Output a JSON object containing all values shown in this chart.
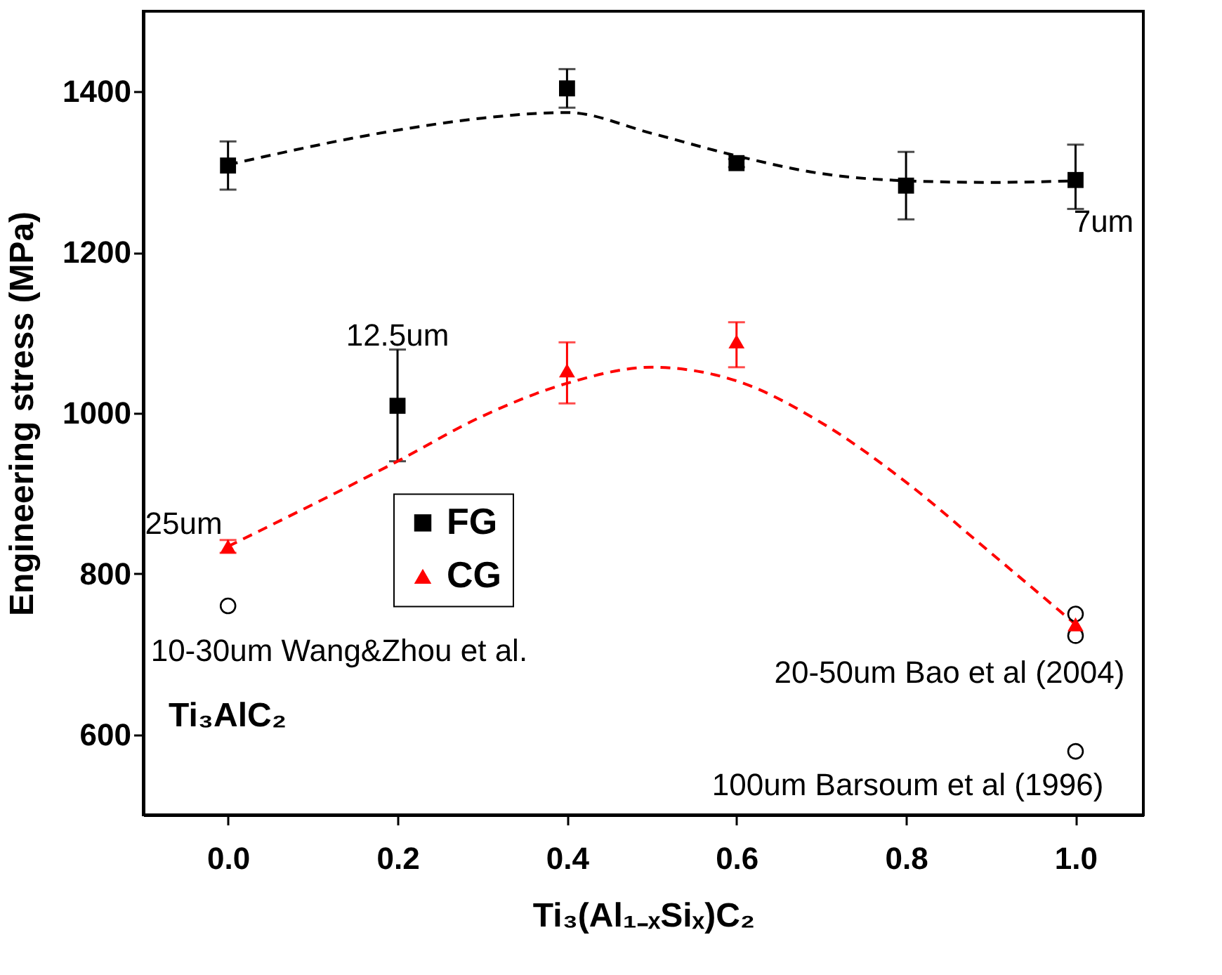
{
  "chart_data": {
    "type": "scatter",
    "xlabel": "Ti₃(Al₁₋ₓSiₓ)C₂",
    "ylabel": "Engineering stress (MPa)",
    "xlim": [
      -0.1,
      1.08
    ],
    "ylim": [
      500,
      1500
    ],
    "xticks": [
      {
        "value": 0,
        "label": "0.0"
      },
      {
        "value": 0.2,
        "label": "0.2"
      },
      {
        "value": 0.4,
        "label": "0.4"
      },
      {
        "value": 0.6,
        "label": "0.6"
      },
      {
        "value": 0.8,
        "label": "0.8"
      },
      {
        "value": 1,
        "label": "1.0"
      }
    ],
    "yticks": [
      600,
      800,
      1000,
      1200,
      1400
    ],
    "grid": false,
    "legend": "center",
    "series": [
      {
        "name": "FG",
        "marker": "square",
        "color": "#000000",
        "x": [
          0,
          0.2,
          0.4,
          0.6,
          0.8,
          1.0
        ],
        "values": [
          1308,
          1009,
          1404,
          1311,
          1283,
          1290
        ],
        "errors": [
          [
            1278,
            1338
          ],
          [
            940,
            1079
          ],
          [
            1380,
            1428
          ],
          [
            1306,
            1316
          ],
          [
            1241,
            1325
          ],
          [
            1254,
            1334
          ]
        ]
      },
      {
        "type": "line",
        "line_style": "dashed",
        "color": "#000000",
        "x": [
          0,
          0.2,
          0.3,
          0.4,
          0.5,
          0.6,
          0.7,
          0.8,
          0.9,
          1.0
        ],
        "values": [
          1309,
          1352,
          1367,
          1374,
          1348,
          1320,
          1298,
          1289,
          1287,
          1289
        ]
      },
      {
        "name": "CG",
        "marker": "triangle",
        "color": "#ff0000",
        "x": [
          0,
          0.4,
          0.6,
          1.0
        ],
        "values": [
          834,
          1053,
          1089,
          737
        ],
        "errors": [
          [
            826,
            842
          ],
          [
            1012,
            1088
          ],
          [
            1057,
            1113
          ],
          null
        ]
      },
      {
        "type": "line",
        "line_style": "dashed",
        "color": "#ff0000",
        "x": [
          0,
          0.2,
          0.3,
          0.4,
          0.5,
          0.6,
          0.7,
          0.8,
          0.9,
          1.0
        ],
        "values": [
          834,
          940,
          996,
          1037,
          1057,
          1040,
          988,
          914,
          826,
          737
        ]
      },
      {
        "marker": "circle",
        "color": "#000000",
        "x": [
          0,
          1.0,
          1.0,
          1.0
        ],
        "values": [
          760,
          750,
          723,
          579
        ]
      }
    ],
    "annotations": [
      {
        "text": "25um",
        "x": 0,
        "y": 834
      },
      {
        "text": "12.5um",
        "x": 0.2,
        "y": 1079
      },
      {
        "text": "7um",
        "x": 1.0,
        "y": 1290
      },
      {
        "text": "10-30um Wang&Zhou et al.",
        "x": 0,
        "y": 760
      },
      {
        "text": "20-50um Bao et al (2004)",
        "x": 1.0,
        "y": 750
      },
      {
        "text": "100um Barsoum et al (1996)",
        "x": 1.0,
        "y": 579
      },
      "Ti₃AlC₂"
    ]
  }
}
